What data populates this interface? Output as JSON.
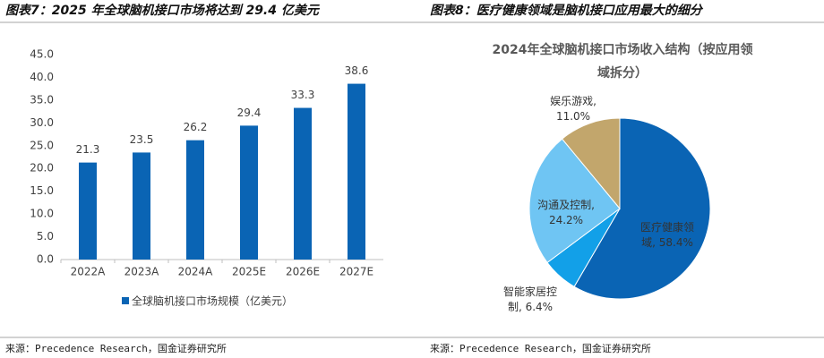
{
  "chart_data": [
    {
      "type": "bar",
      "heading": "图表7：2025 年全球脑机接口市场将达到 29.4 亿美元",
      "categories": [
        "2022A",
        "2023A",
        "2024A",
        "2025E",
        "2026E",
        "2027E"
      ],
      "series": [
        {
          "name": "全球脑机接口市场规模（亿美元）",
          "color": "#0a64b4",
          "values": [
            21.3,
            23.5,
            26.2,
            29.4,
            33.3,
            38.6
          ]
        }
      ],
      "ylim": [
        0,
        45
      ],
      "yticks": [
        {
          "value": 0,
          "label": "0.0"
        },
        {
          "value": 5,
          "label": "5.0"
        },
        {
          "value": 10,
          "label": "10.0"
        },
        {
          "value": 15,
          "label": "15.0"
        },
        {
          "value": 20,
          "label": "20.0"
        },
        {
          "value": 25,
          "label": "25.0"
        },
        {
          "value": 30,
          "label": "30.0"
        },
        {
          "value": 35,
          "label": "35.0"
        },
        {
          "value": 40,
          "label": "40.0"
        },
        {
          "value": 45,
          "label": "45.0"
        }
      ],
      "legend": "bottom",
      "source": "来源：Precedence Research，国金证券研究所"
    },
    {
      "type": "pie",
      "heading": "图表8：医疗健康领域是脑机接口应用最大的细分",
      "title": "2024年全球脑机接口市场收入结构（按应用领域拆分）",
      "values": [
        58.4,
        6.4,
        24.2,
        11.0
      ],
      "value_labels": [
        "医疗健康领域, 58.4%",
        "智能家居控制, 6.4%",
        "沟通及控制, 24.2%",
        "娱乐游戏, 11.0%"
      ],
      "colors": [
        "#0a64b4",
        "#12a0e8",
        "#6fc5f3",
        "#c2a66c"
      ],
      "source": "来源：Precedence Research，国金证券研究所"
    }
  ]
}
